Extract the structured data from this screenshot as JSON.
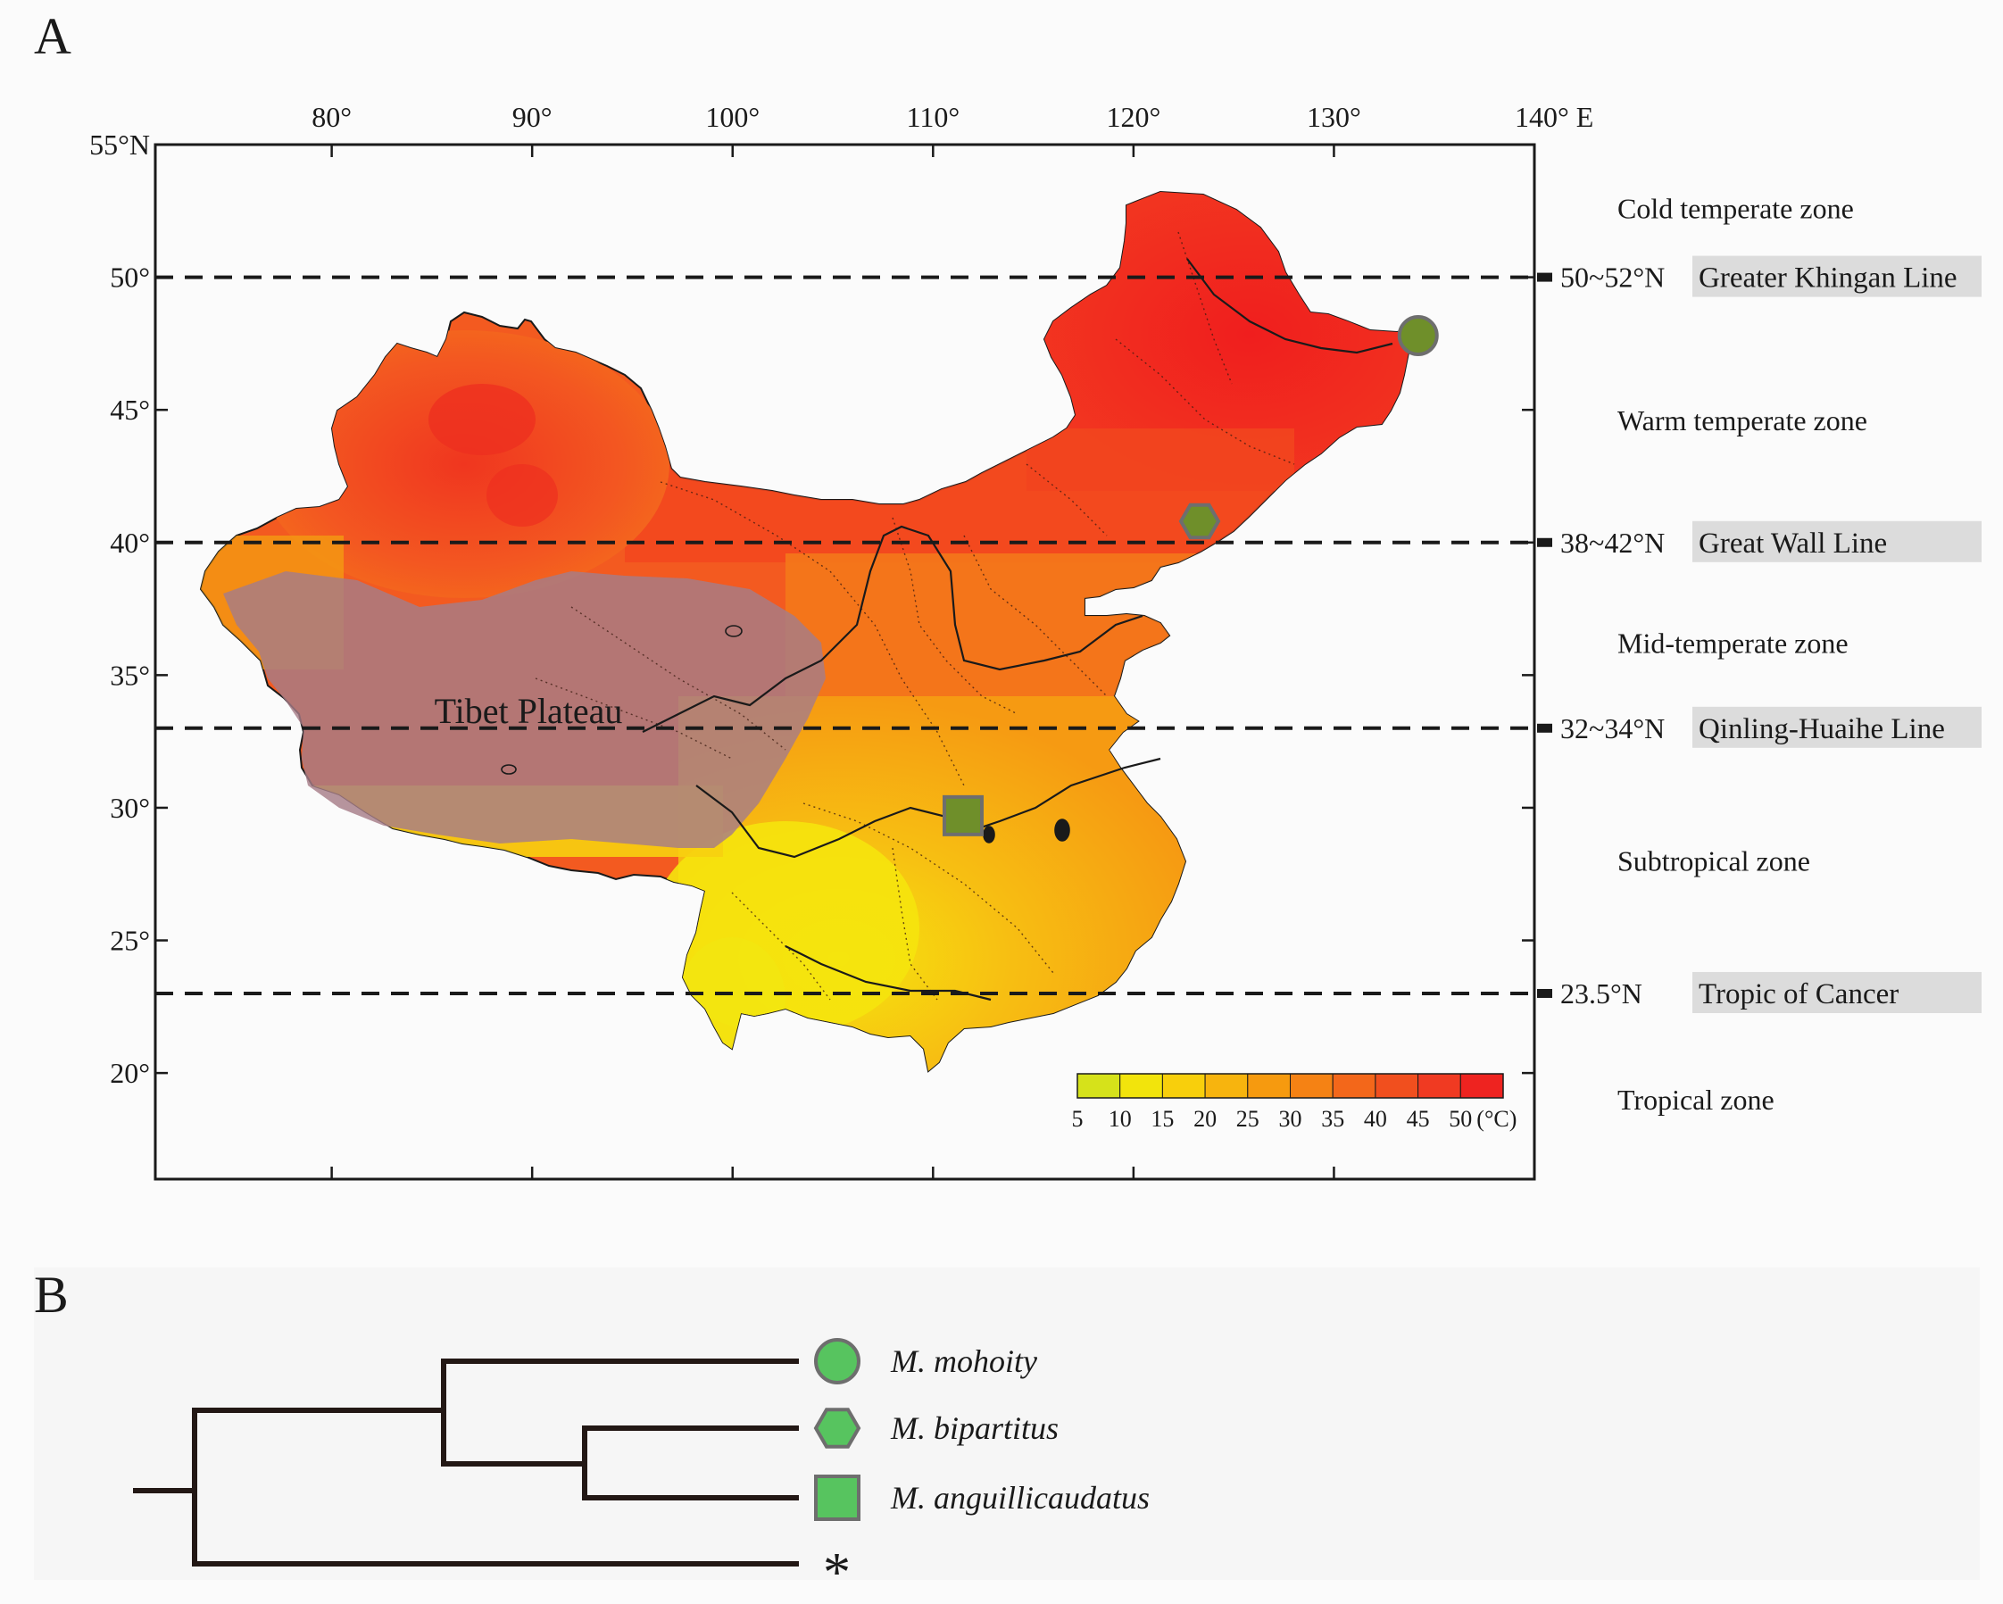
{
  "panels": {
    "a_label": "A",
    "b_label": "B"
  },
  "map": {
    "lon_ticks": [
      {
        "value": 80,
        "label": "80°"
      },
      {
        "value": 90,
        "label": "90°"
      },
      {
        "value": 100,
        "label": "100°"
      },
      {
        "value": 110,
        "label": "110°"
      },
      {
        "value": 120,
        "label": "120°"
      },
      {
        "value": 130,
        "label": "130°"
      },
      {
        "value": 140,
        "label": "140° E"
      }
    ],
    "lat_ticks": [
      {
        "value": 55,
        "label": "55°N"
      },
      {
        "value": 50,
        "label": "50°"
      },
      {
        "value": 45,
        "label": "45°"
      },
      {
        "value": 40,
        "label": "40°"
      },
      {
        "value": 35,
        "label": "35°"
      },
      {
        "value": 30,
        "label": "30°"
      },
      {
        "value": 25,
        "label": "25°"
      },
      {
        "value": 20,
        "label": "20°"
      }
    ],
    "lon_range": [
      71.2,
      140
    ],
    "lat_range": [
      16,
      55
    ],
    "plateau_label": "Tibet Plateau",
    "boundary_lines": [
      {
        "lat": 50,
        "range_label": "50~52°N",
        "name": "Greater Khingan Line"
      },
      {
        "lat": 40,
        "range_label": "38~42°N",
        "name": "Great Wall Line"
      },
      {
        "lat": 33,
        "range_label": "32~34°N",
        "name": "Qinling-Huaihe Line"
      },
      {
        "lat": 23,
        "range_label": "23.5°N",
        "name": "Tropic of Cancer"
      }
    ],
    "zones": [
      {
        "name": "Cold temperate zone",
        "lat": 52.6
      },
      {
        "name": "Warm temperate zone",
        "lat": 44.6
      },
      {
        "name": "Mid-temperate zone",
        "lat": 36.2
      },
      {
        "name": "Subtropical zone",
        "lat": 28.0
      },
      {
        "name": "Tropical zone",
        "lat": 19.0
      }
    ],
    "colorbar": {
      "ticks": [
        "5",
        "10",
        "15",
        "20",
        "25",
        "30",
        "35",
        "40",
        "45",
        "50"
      ],
      "unit": "(°C)",
      "colors": [
        "#d6e21a",
        "#f2e40c",
        "#f8cf0c",
        "#f7b40e",
        "#f69a0f",
        "#f58214",
        "#f3671a",
        "#f14f1e",
        "#f03a22",
        "#ee2320"
      ]
    },
    "markers": [
      {
        "species": "M. mohoity",
        "shape": "circle",
        "lon": 134.2,
        "lat": 47.8
      },
      {
        "species": "M. bipartitus",
        "shape": "hexagon",
        "lon": 123.3,
        "lat": 40.8
      },
      {
        "species": "M. anguillicaudatus",
        "shape": "square",
        "lon": 111.5,
        "lat": 29.7
      }
    ]
  },
  "tree": {
    "taxa": [
      {
        "name": "M. mohoity",
        "shape": "circle"
      },
      {
        "name": "M. bipartitus",
        "shape": "hexagon"
      },
      {
        "name": "M. anguillicaudatus",
        "shape": "square"
      },
      {
        "name": "*",
        "shape": "none"
      }
    ]
  },
  "colors": {
    "marker_fill": "#57c45f",
    "marker_stroke": "#6e6e6e",
    "plateau_overlay": "#a67c87",
    "line_label_bg": "#dcdcdc",
    "ink": "#1a1a1a"
  }
}
